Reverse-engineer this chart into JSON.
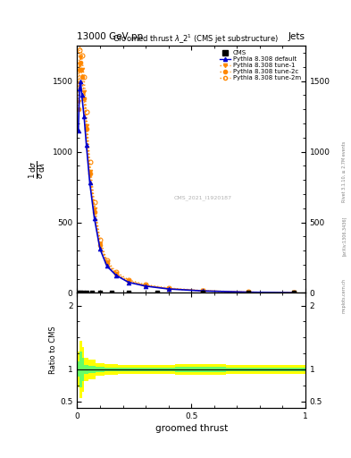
{
  "title": "Groomed thrust $\\lambda$_2$^1$ (CMS jet substructure)",
  "header_left": "13000 GeV pp",
  "header_right": "Jets",
  "xlabel": "groomed thrust",
  "ylabel_ratio": "Ratio to CMS",
  "watermark": "CMS_2021_I1920187",
  "rivet_label": "Rivet 3.1.10, ≥ 2.7M events",
  "arxiv_label": "[arXiv:1306.3436]",
  "mcplots_label": "mcplots.cern.ch",
  "main_x": [
    0.005,
    0.01,
    0.015,
    0.02,
    0.03,
    0.04,
    0.055,
    0.075,
    0.1,
    0.13,
    0.17,
    0.225,
    0.3,
    0.4,
    0.55,
    0.75,
    0.95
  ],
  "pythia_default_y": [
    1150,
    1450,
    1500,
    1400,
    1250,
    1050,
    780,
    530,
    310,
    190,
    125,
    75,
    48,
    28,
    14,
    5,
    1
  ],
  "pythia_tune1_y": [
    1350,
    1620,
    1670,
    1580,
    1420,
    1180,
    860,
    590,
    345,
    215,
    135,
    85,
    52,
    30,
    15,
    5.5,
    1.1
  ],
  "pythia_tune2c_y": [
    1300,
    1580,
    1630,
    1530,
    1380,
    1160,
    845,
    575,
    338,
    210,
    133,
    82,
    51,
    30,
    14.8,
    5.2,
    1.05
  ],
  "pythia_tune2m_y": [
    1480,
    1720,
    1780,
    1680,
    1530,
    1280,
    930,
    640,
    375,
    230,
    148,
    92,
    57,
    34,
    16.5,
    5.9,
    1.25
  ],
  "cms_x": [
    0.005,
    0.015,
    0.025,
    0.04,
    0.065,
    0.1,
    0.15,
    0.225,
    0.35,
    0.55,
    0.75,
    0.95
  ],
  "cms_y": [
    2,
    2,
    2,
    2,
    2,
    2,
    2,
    2,
    2,
    2,
    2,
    2
  ],
  "color_default": "#0000cc",
  "color_orange": "#ff8800",
  "ylim_main": [
    0,
    1750
  ],
  "yticks_main": [
    0,
    500,
    1000,
    1500
  ],
  "xlim": [
    0,
    1.0
  ],
  "xticks": [
    0,
    0.5,
    1.0
  ],
  "ylim_ratio": [
    0.4,
    2.2
  ],
  "yticks_ratio": [
    0.5,
    1.0,
    2.0
  ],
  "ratio_bin_edges": [
    0.0,
    0.01,
    0.02,
    0.03,
    0.05,
    0.08,
    0.12,
    0.18,
    0.27,
    0.43,
    0.65,
    0.85,
    1.0
  ],
  "ratio_green_lo": [
    0.88,
    0.72,
    0.82,
    0.93,
    0.94,
    0.96,
    0.97,
    0.97,
    0.97,
    0.96,
    0.97,
    0.97
  ],
  "ratio_green_hi": [
    1.12,
    1.28,
    1.18,
    1.07,
    1.06,
    1.04,
    1.03,
    1.03,
    1.03,
    1.04,
    1.03,
    1.03
  ],
  "ratio_yellow_lo": [
    0.72,
    0.55,
    0.65,
    0.82,
    0.85,
    0.9,
    0.92,
    0.93,
    0.93,
    0.91,
    0.93,
    0.93
  ],
  "ratio_yellow_hi": [
    1.28,
    1.45,
    1.35,
    1.18,
    1.15,
    1.1,
    1.08,
    1.07,
    1.07,
    1.09,
    1.07,
    1.07
  ],
  "background_color": "#ffffff"
}
